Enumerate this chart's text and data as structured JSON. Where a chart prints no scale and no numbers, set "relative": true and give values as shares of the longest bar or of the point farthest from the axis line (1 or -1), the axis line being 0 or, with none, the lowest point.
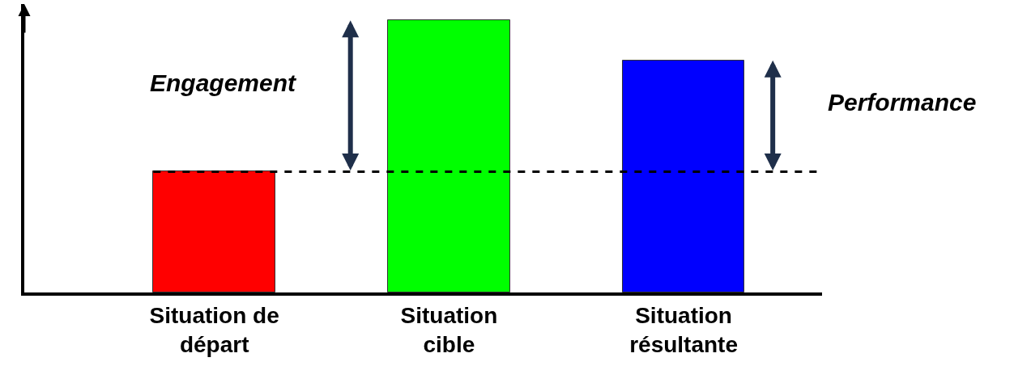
{
  "chart_data": {
    "type": "bar",
    "relative": true,
    "categories": [
      "Situation de départ",
      "Situation cible",
      "Situation résultante"
    ],
    "values": [
      0.444,
      1,
      0.853
    ],
    "colors": [
      "#ff0000",
      "#00ff00",
      "#0000ff"
    ],
    "ref_lines": [
      {
        "axis": "y",
        "value": 0.444,
        "color": "#000000",
        "line_style": "dashed"
      }
    ],
    "annotations": [
      "Engagement",
      "Performance"
    ]
  }
}
